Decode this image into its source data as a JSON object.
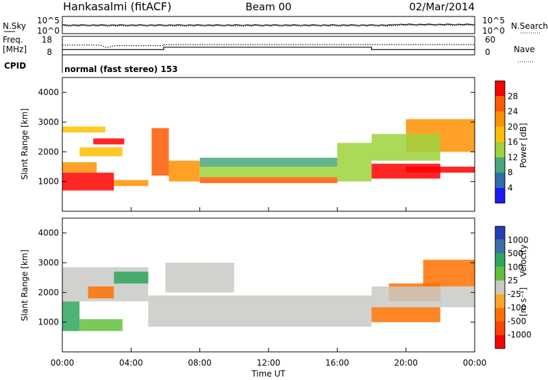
{
  "header": {
    "station": "Hankasalmi (fitACF)",
    "beam": "Beam 00",
    "date": "02/Mar/2014"
  },
  "strip_labels": {
    "nsky": "N.Sky",
    "nsearch": "N.Search",
    "freq_top": "Freq.",
    "freq_unit": "[MHz]",
    "nave": "Nave",
    "cpid": "CPID",
    "cpid_text": "normal (fast stereo) 153"
  },
  "strip_ticks": {
    "noise_left": [
      "10^5",
      "10^0"
    ],
    "noise_right": [
      "10^5",
      "10^0"
    ],
    "freq_left": [
      "18",
      "8"
    ],
    "nave_right": [
      "60",
      "0"
    ]
  },
  "axes": {
    "ylabel": "Slant Range [km]",
    "xlabel": "Time UT",
    "yticks": [
      "4000",
      "3000",
      "2000",
      "1000"
    ],
    "xticks": [
      "00:00",
      "04:00",
      "08:00",
      "12:00",
      "16:00",
      "20:00",
      "00:00"
    ]
  },
  "colorbars": {
    "power": {
      "label": "Power [dB]",
      "ticks": [
        "28",
        "24",
        "20",
        "16",
        "12",
        "8",
        "4"
      ],
      "colors": [
        "#ff0000",
        "#ff5a00",
        "#ff9100",
        "#ffc000",
        "#9fd23c",
        "#48a87a",
        "#2e6fa6",
        "#1a1aff"
      ]
    },
    "velocity": {
      "label_main": "Velocity",
      "label_unit": "[m s⁻¹]",
      "ticks": [
        "1000",
        "500",
        "100",
        "25",
        "-25",
        "-100",
        "-500",
        "-1000"
      ],
      "colors": [
        "#2440b8",
        "#3a72a8",
        "#2fa65e",
        "#62c13a",
        "#c9c9c6",
        "#ffa52a",
        "#ff7000",
        "#ff4500",
        "#ff0000"
      ]
    }
  },
  "chart_data": {
    "type": "heatmap",
    "x_unit": "hours UT",
    "xlim": [
      0,
      24
    ],
    "ylim": [
      0,
      4500
    ],
    "grid": false,
    "noise_search_note": "N.Search dotted, N.Sky solid",
    "freq_mhz": [
      {
        "t": 0,
        "f": 10.5
      },
      {
        "t": 5.9,
        "f": 10.5
      },
      {
        "t": 5.9,
        "f": 12.0
      },
      {
        "t": 18.0,
        "f": 12.0
      },
      {
        "t": 18.0,
        "f": 10.5
      },
      {
        "t": 24,
        "f": 10.5
      }
    ],
    "nave": [
      {
        "t": 0,
        "v": 32
      },
      {
        "t": 2.2,
        "v": 32
      },
      {
        "t": 2.6,
        "v": 22
      },
      {
        "t": 3.0,
        "v": 30
      },
      {
        "t": 5.9,
        "v": 30
      },
      {
        "t": 5.9,
        "v": 34
      },
      {
        "t": 24,
        "v": 34
      }
    ],
    "power_bands": [
      {
        "t0": 0,
        "t1": 3,
        "r0": 700,
        "r1": 1300,
        "db": 30
      },
      {
        "t0": 3,
        "t1": 5,
        "r0": 850,
        "r1": 1050,
        "db": 22
      },
      {
        "t0": 0,
        "t1": 2,
        "r0": 1300,
        "r1": 1650,
        "db": 22
      },
      {
        "t0": 1,
        "t1": 3.5,
        "r0": 1850,
        "r1": 2150,
        "db": 18
      },
      {
        "t0": 1.8,
        "t1": 3.6,
        "r0": 2250,
        "r1": 2450,
        "db": 28
      },
      {
        "t0": 0,
        "t1": 2.5,
        "r0": 2650,
        "r1": 2850,
        "db": 16
      },
      {
        "t0": 5.2,
        "t1": 6.2,
        "r0": 1200,
        "r1": 2800,
        "db": 24
      },
      {
        "t0": 6.2,
        "t1": 8,
        "r0": 1000,
        "r1": 1700,
        "db": 22
      },
      {
        "t0": 8,
        "t1": 16,
        "r0": 950,
        "r1": 1150,
        "db": 26
      },
      {
        "t0": 8,
        "t1": 16,
        "r0": 1150,
        "r1": 1500,
        "db": 14
      },
      {
        "t0": 8,
        "t1": 16,
        "r0": 1500,
        "r1": 1800,
        "db": 8
      },
      {
        "t0": 16,
        "t1": 18,
        "r0": 1000,
        "r1": 2300,
        "db": 14
      },
      {
        "t0": 18,
        "t1": 22,
        "r0": 1100,
        "r1": 1600,
        "db": 28
      },
      {
        "t0": 20,
        "t1": 24,
        "r0": 1300,
        "r1": 1500,
        "db": 30
      },
      {
        "t0": 20,
        "t1": 24,
        "r0": 2000,
        "r1": 3100,
        "db": 22
      },
      {
        "t0": 18,
        "t1": 22,
        "r0": 1700,
        "r1": 2600,
        "db": 12
      }
    ],
    "velocity_bands": [
      {
        "t0": 0,
        "t1": 1,
        "r0": 700,
        "r1": 1700,
        "v": 300
      },
      {
        "t0": 1,
        "t1": 3.5,
        "r0": 700,
        "r1": 1100,
        "v": 50
      },
      {
        "t0": 0,
        "t1": 5,
        "r0": 1700,
        "r1": 2850,
        "v": 0
      },
      {
        "t0": 1.5,
        "t1": 3,
        "r0": 1800,
        "r1": 2200,
        "v": -200
      },
      {
        "t0": 3,
        "t1": 5,
        "r0": 2300,
        "r1": 2700,
        "v": 150
      },
      {
        "t0": 5,
        "t1": 18,
        "r0": 850,
        "r1": 1900,
        "v": 0
      },
      {
        "t0": 6,
        "t1": 10,
        "r0": 2000,
        "r1": 3000,
        "v": 0
      },
      {
        "t0": 18,
        "t1": 22,
        "r0": 1000,
        "r1": 1500,
        "v": -300
      },
      {
        "t0": 19,
        "t1": 22,
        "r0": 1700,
        "r1": 2300,
        "v": -200
      },
      {
        "t0": 21,
        "t1": 24,
        "r0": 2200,
        "r1": 3100,
        "v": -150
      },
      {
        "t0": 18,
        "t1": 24,
        "r0": 1500,
        "r1": 2200,
        "v": 0
      }
    ]
  }
}
